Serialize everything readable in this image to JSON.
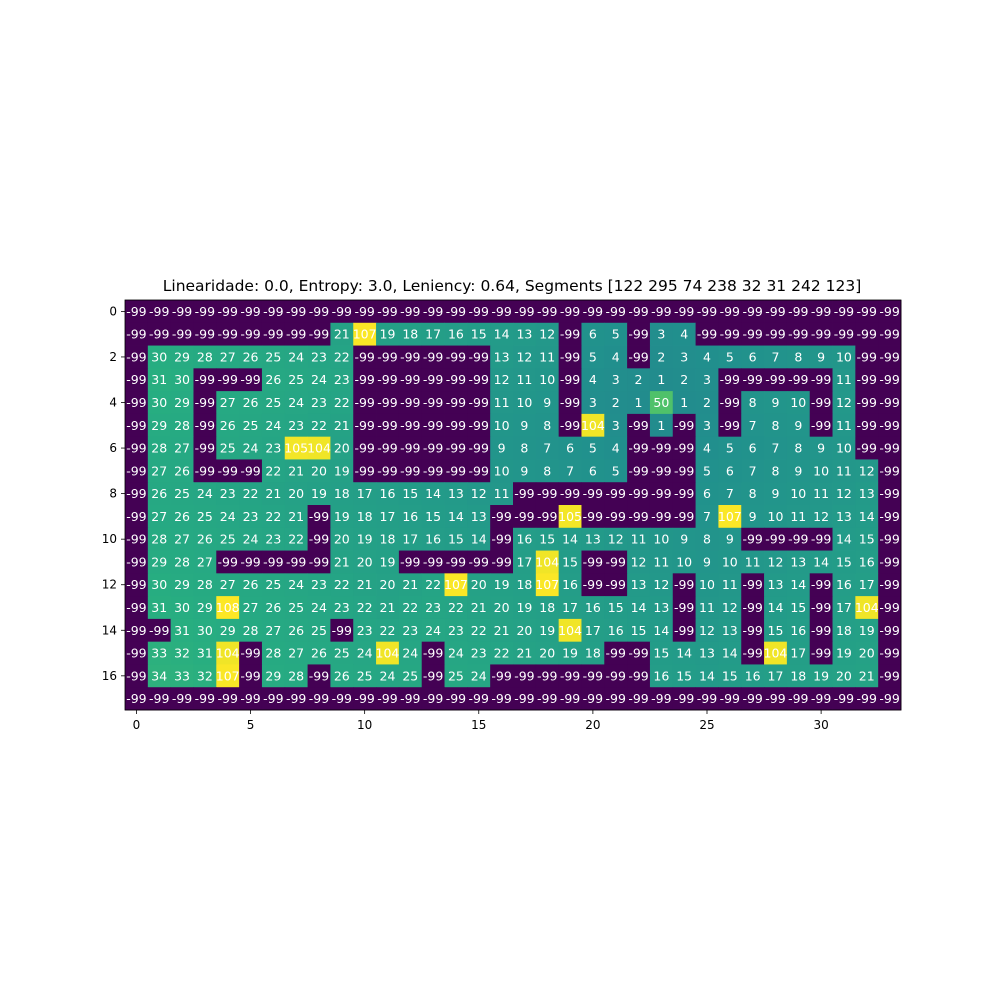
{
  "chart_data": {
    "type": "heatmap",
    "title": "Linearidade: 0.0, Entropy: 3.0, Leniency: 0.64, Segments [122 295  74 238  32  31 242 123]",
    "xlabel": "",
    "ylabel": "",
    "x_ticks": [
      0,
      5,
      10,
      15,
      20,
      25,
      30
    ],
    "y_ticks": [
      0,
      2,
      4,
      6,
      8,
      10,
      12,
      14,
      16
    ],
    "vmin": -99,
    "vmax": 108,
    "colormap": "viridis",
    "grid": false,
    "rows": [
      [
        -99,
        -99,
        -99,
        -99,
        -99,
        -99,
        -99,
        -99,
        -99,
        -99,
        -99,
        -99,
        -99,
        -99,
        -99,
        -99,
        -99,
        -99,
        -99,
        -99,
        -99,
        -99,
        -99,
        -99,
        -99,
        -99,
        -99,
        -99,
        -99,
        -99,
        -99,
        -99,
        -99,
        -99
      ],
      [
        -99,
        -99,
        -99,
        -99,
        -99,
        -99,
        -99,
        -99,
        -99,
        21,
        107,
        19,
        18,
        17,
        16,
        15,
        14,
        13,
        12,
        -99,
        6,
        5,
        -99,
        3,
        4,
        -99,
        -99,
        -99,
        -99,
        -99,
        -99,
        -99,
        -99,
        -99
      ],
      [
        -99,
        30,
        29,
        28,
        27,
        26,
        25,
        24,
        23,
        22,
        -99,
        -99,
        -99,
        -99,
        -99,
        -99,
        13,
        12,
        11,
        -99,
        5,
        4,
        -99,
        2,
        3,
        4,
        5,
        6,
        7,
        8,
        9,
        10,
        -99,
        -99
      ],
      [
        -99,
        31,
        30,
        -99,
        -99,
        -99,
        26,
        25,
        24,
        23,
        -99,
        -99,
        -99,
        -99,
        -99,
        -99,
        12,
        11,
        10,
        -99,
        4,
        3,
        2,
        1,
        2,
        3,
        -99,
        -99,
        -99,
        -99,
        -99,
        11,
        -99,
        -99
      ],
      [
        -99,
        30,
        29,
        -99,
        27,
        26,
        25,
        24,
        23,
        22,
        -99,
        -99,
        -99,
        -99,
        -99,
        -99,
        11,
        10,
        9,
        -99,
        3,
        2,
        1,
        50,
        1,
        2,
        -99,
        8,
        9,
        10,
        -99,
        12,
        -99,
        -99
      ],
      [
        -99,
        29,
        28,
        -99,
        26,
        25,
        24,
        23,
        22,
        21,
        -99,
        -99,
        -99,
        -99,
        -99,
        -99,
        10,
        9,
        8,
        -99,
        104,
        3,
        -99,
        1,
        -99,
        3,
        -99,
        7,
        8,
        9,
        -99,
        11,
        -99,
        -99
      ],
      [
        -99,
        28,
        27,
        -99,
        25,
        24,
        23,
        105,
        104,
        20,
        -99,
        -99,
        -99,
        -99,
        -99,
        -99,
        9,
        8,
        7,
        6,
        5,
        4,
        -99,
        -99,
        -99,
        4,
        5,
        6,
        7,
        8,
        9,
        10,
        -99,
        -99
      ],
      [
        -99,
        27,
        26,
        -99,
        -99,
        -99,
        22,
        21,
        20,
        19,
        -99,
        -99,
        -99,
        -99,
        -99,
        -99,
        10,
        9,
        8,
        7,
        6,
        5,
        -99,
        -99,
        -99,
        5,
        6,
        7,
        8,
        9,
        10,
        11,
        12,
        -99
      ],
      [
        -99,
        26,
        25,
        24,
        23,
        22,
        21,
        20,
        19,
        18,
        17,
        16,
        15,
        14,
        13,
        12,
        11,
        -99,
        -99,
        -99,
        -99,
        -99,
        -99,
        -99,
        -99,
        6,
        7,
        8,
        9,
        10,
        11,
        12,
        13,
        -99
      ],
      [
        -99,
        27,
        26,
        25,
        24,
        23,
        22,
        21,
        -99,
        19,
        18,
        17,
        16,
        15,
        14,
        13,
        -99,
        -99,
        -99,
        105,
        -99,
        -99,
        -99,
        -99,
        -99,
        7,
        107,
        9,
        10,
        11,
        12,
        13,
        14,
        -99
      ],
      [
        -99,
        28,
        27,
        26,
        25,
        24,
        23,
        22,
        -99,
        20,
        19,
        18,
        17,
        16,
        15,
        14,
        -99,
        16,
        15,
        14,
        13,
        12,
        11,
        10,
        9,
        8,
        9,
        -99,
        -99,
        -99,
        -99,
        14,
        15,
        -99
      ],
      [
        -99,
        29,
        28,
        27,
        -99,
        -99,
        -99,
        -99,
        -99,
        21,
        20,
        19,
        -99,
        -99,
        -99,
        -99,
        -99,
        17,
        104,
        15,
        -99,
        -99,
        12,
        11,
        10,
        9,
        10,
        11,
        12,
        13,
        14,
        15,
        16,
        -99
      ],
      [
        -99,
        30,
        29,
        28,
        27,
        26,
        25,
        24,
        23,
        22,
        21,
        20,
        21,
        22,
        107,
        20,
        19,
        18,
        107,
        16,
        -99,
        -99,
        13,
        12,
        -99,
        10,
        11,
        -99,
        13,
        14,
        -99,
        16,
        17,
        -99
      ],
      [
        -99,
        31,
        30,
        29,
        108,
        27,
        26,
        25,
        24,
        23,
        22,
        21,
        22,
        23,
        22,
        21,
        20,
        19,
        18,
        17,
        16,
        15,
        14,
        13,
        -99,
        11,
        12,
        -99,
        14,
        15,
        -99,
        17,
        104,
        -99
      ],
      [
        -99,
        -99,
        31,
        30,
        29,
        28,
        27,
        26,
        25,
        -99,
        23,
        22,
        23,
        24,
        23,
        22,
        21,
        20,
        19,
        104,
        17,
        16,
        15,
        14,
        -99,
        12,
        13,
        -99,
        15,
        16,
        -99,
        18,
        19,
        -99
      ],
      [
        -99,
        33,
        32,
        31,
        104,
        -99,
        28,
        27,
        26,
        25,
        24,
        104,
        24,
        -99,
        24,
        23,
        22,
        21,
        20,
        19,
        18,
        -99,
        -99,
        15,
        14,
        13,
        14,
        -99,
        104,
        17,
        -99,
        19,
        20,
        -99
      ],
      [
        -99,
        34,
        33,
        32,
        107,
        -99,
        29,
        28,
        -99,
        26,
        25,
        24,
        25,
        -99,
        25,
        24,
        -99,
        -99,
        -99,
        -99,
        -99,
        -99,
        -99,
        16,
        15,
        14,
        15,
        16,
        17,
        18,
        19,
        20,
        21,
        -99
      ],
      [
        -99,
        -99,
        -99,
        -99,
        -99,
        -99,
        -99,
        -99,
        -99,
        -99,
        -99,
        -99,
        -99,
        -99,
        -99,
        -99,
        -99,
        -99,
        -99,
        -99,
        -99,
        -99,
        -99,
        -99,
        -99,
        -99,
        -99,
        -99,
        -99,
        -99,
        -99,
        -99,
        -99,
        -99
      ]
    ]
  }
}
